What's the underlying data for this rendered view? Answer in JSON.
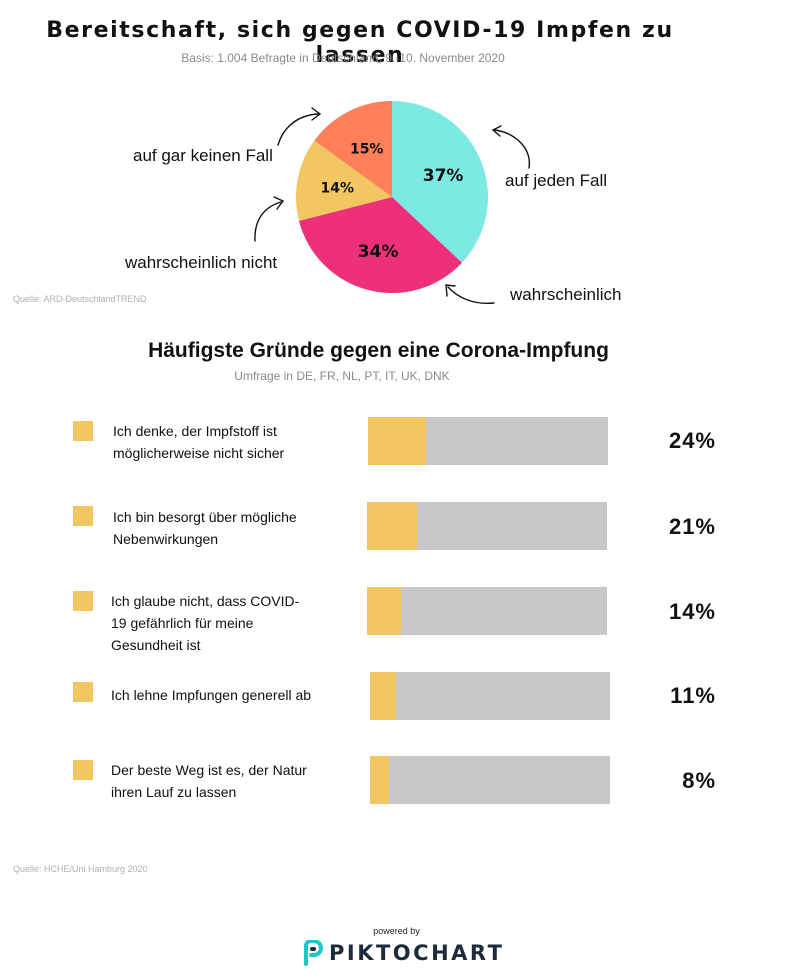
{
  "header": {
    "title": "Bereitschaft, sich gegen COVID-19 Impfen zu lassen",
    "subtitle": "Basis: 1.004 Befragte in Deutschland, 9.-10. November 2020",
    "source": "Quelle: ARD-DeutschlandTREND"
  },
  "reasons_header": {
    "title": "Häufigste Gründe gegen eine Corona-Impfung",
    "subtitle": "Umfrage in DE, FR, NL, PT, IT,  UK, DNK",
    "source": "Quelle: HCHE/Uni Hamburg 2020"
  },
  "footer": {
    "powered_by": "powered by",
    "brand": "PIKTOCHART"
  },
  "chart_data": [
    {
      "type": "pie",
      "slices": [
        {
          "label": "auf jeden Fall",
          "value": 37,
          "display": "37%",
          "color": "#7de9e3"
        },
        {
          "label": "wahrscheinlich",
          "value": 34,
          "display": "34%",
          "color": "#ee2f7a"
        },
        {
          "label": "wahrscheinlich nicht",
          "value": 14,
          "display": "14%",
          "color": "#f2c661"
        },
        {
          "label": "auf gar keinen Fall",
          "value": 15,
          "display": "15%",
          "color": "#fd8058"
        }
      ]
    },
    {
      "type": "bar",
      "orientation": "horizontal",
      "xlim": [
        0,
        100
      ],
      "fill_color": "#f2c661",
      "track_color": "#c8c8c8",
      "categories": [
        "Ich denke, der Impfstoff ist möglicherweise nicht sicher",
        "Ich bin besorgt über mögliche Nebenwirkungen",
        "Ich glaube nicht, dass COVID-19 gefährlich für meine Gesundheit ist",
        "Ich lehne Impfungen generell ab",
        "Der beste Weg ist es, der Natur ihren Lauf zu lassen"
      ],
      "values": [
        24,
        21,
        14,
        11,
        8
      ],
      "labels": [
        "24%",
        "21%",
        "14%",
        "11%",
        "8%"
      ]
    }
  ]
}
